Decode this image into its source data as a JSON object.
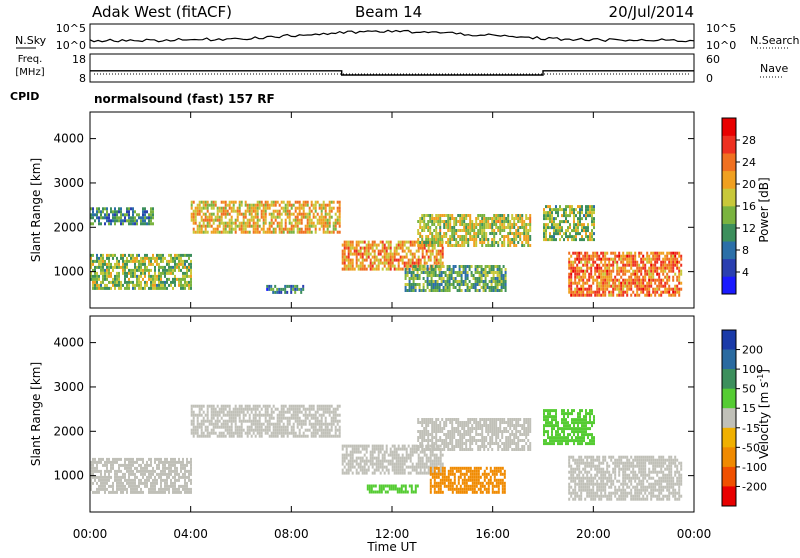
{
  "header": {
    "station": "Adak West (fitACF)",
    "beam": "Beam 14",
    "date": "20/Jul/2014"
  },
  "noise_panel": {
    "left_label": "N.Sky",
    "right_label": "N.Search",
    "left_ticks": [
      "10^5",
      "10^0"
    ],
    "right_ticks": [
      "10^5",
      "10^0"
    ]
  },
  "freq_panel": {
    "left_label_line1": "Freq.",
    "left_label_line2": "[MHz]",
    "right_label": "Nave",
    "left_ticks": [
      "18",
      "8"
    ],
    "right_ticks": [
      "60",
      "0"
    ],
    "cpid_label": "CPID",
    "cpid_text": "normalsound (fast) 157 RF",
    "freq_steps": [
      {
        "start_h": 0,
        "end_h": 10,
        "value": 12
      },
      {
        "start_h": 10,
        "end_h": 18,
        "value": 10.5
      },
      {
        "start_h": 18,
        "end_h": 24,
        "value": 12
      }
    ]
  },
  "time_axis": {
    "label": "Time UT",
    "ticks": [
      "00:00",
      "04:00",
      "08:00",
      "12:00",
      "16:00",
      "20:00",
      "00:00"
    ],
    "range_h": [
      0,
      24
    ]
  },
  "range_axis": {
    "label": "Slant Range [km]",
    "ticks": [
      "1000",
      "2000",
      "3000",
      "4000"
    ],
    "range_km": [
      180,
      4600
    ]
  },
  "power_colorbar": {
    "label": "Power [dB]",
    "ticks": [
      "4",
      "8",
      "12",
      "16",
      "20",
      "24",
      "28"
    ],
    "colors": [
      "#1a1aff",
      "#2a3fb0",
      "#2b6fa8",
      "#3c8f5c",
      "#7ab33f",
      "#c8c83a",
      "#f0a020",
      "#f07020",
      "#ee3020",
      "#e80000"
    ]
  },
  "velocity_colorbar": {
    "label": "Velocity [m s",
    "label_sup": "-1",
    "label_end": "]",
    "ticks": [
      "200",
      "100",
      "50",
      "15",
      "-15",
      "-50",
      "-100",
      "-200"
    ],
    "colors": [
      "#1a3aa8",
      "#2a6aa0",
      "#3c8f5c",
      "#55cc33",
      "#c0c0b8",
      "#f0b000",
      "#f08a00",
      "#f05000",
      "#e80000"
    ]
  },
  "chart_data": {
    "type": "heatmap",
    "panels": [
      {
        "name": "power",
        "bands": [
          {
            "t": [
              0.0,
              4.0
            ],
            "r": [
              600,
              1400
            ],
            "value": 14
          },
          {
            "t": [
              0.0,
              2.5
            ],
            "r": [
              2050,
              2450
            ],
            "value": 10
          },
          {
            "t": [
              4.0,
              9.9
            ],
            "r": [
              1900,
              2600
            ],
            "value": 18
          },
          {
            "t": [
              10.0,
              14.0
            ],
            "r": [
              1050,
              1700
            ],
            "value": 20
          },
          {
            "t": [
              13.0,
              17.5
            ],
            "r": [
              1600,
              2300
            ],
            "value": 16
          },
          {
            "t": [
              12.5,
              16.5
            ],
            "r": [
              550,
              1150
            ],
            "value": 12
          },
          {
            "t": [
              18.0,
              20.0
            ],
            "r": [
              1700,
              2500
            ],
            "value": 14
          },
          {
            "t": [
              19.0,
              23.5
            ],
            "r": [
              450,
              1450
            ],
            "value": 22
          },
          {
            "t": [
              7.0,
              8.5
            ],
            "r": [
              550,
              700
            ],
            "value": 8
          }
        ]
      },
      {
        "name": "velocity",
        "bands": [
          {
            "t": [
              0.0,
              4.0
            ],
            "r": [
              600,
              1400
            ],
            "value": 0
          },
          {
            "t": [
              4.0,
              9.9
            ],
            "r": [
              1900,
              2600
            ],
            "value": 0
          },
          {
            "t": [
              10.0,
              14.0
            ],
            "r": [
              1050,
              1700
            ],
            "value": 0
          },
          {
            "t": [
              13.0,
              17.5
            ],
            "r": [
              1600,
              2300
            ],
            "value": 0
          },
          {
            "t": [
              13.5,
              16.5
            ],
            "r": [
              600,
              1200
            ],
            "value": -60
          },
          {
            "t": [
              11.0,
              13.0
            ],
            "r": [
              600,
              800
            ],
            "value": 30
          },
          {
            "t": [
              18.0,
              20.0
            ],
            "r": [
              1700,
              2500
            ],
            "value": 25
          },
          {
            "t": [
              19.0,
              23.5
            ],
            "r": [
              450,
              1450
            ],
            "value": 0
          }
        ]
      }
    ]
  }
}
